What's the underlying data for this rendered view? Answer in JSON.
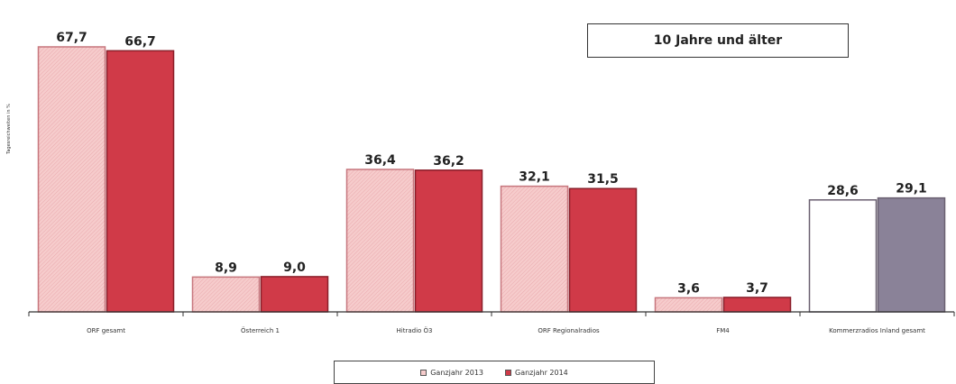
{
  "chart_data": {
    "type": "bar",
    "title": "10 Jahre und älter",
    "ylabel": "Tagesreichweiten in %",
    "ylim": [
      0,
      70
    ],
    "categories": [
      "ORF gesamt",
      "Österreich 1",
      "Hitradio Ö3",
      "ORF Regionalradios",
      "FM4",
      "Kommerzradios Inland gesamt"
    ],
    "series": [
      {
        "name": "Ganzjahr 2013",
        "values": [
          67.7,
          8.9,
          36.4,
          32.1,
          3.6,
          28.6
        ],
        "labels": [
          "67,7",
          "8,9",
          "36,4",
          "32,1",
          "3,6",
          "28,6"
        ]
      },
      {
        "name": "Ganzjahr 2014",
        "values": [
          66.7,
          9.0,
          36.2,
          31.5,
          3.7,
          29.1
        ],
        "labels": [
          "66,7",
          "9,0",
          "36,2",
          "31,5",
          "3,7",
          "29,1"
        ]
      }
    ],
    "colors": {
      "s2013": "#f6cccc",
      "s2014": "#d03a48",
      "commercial2013": "#ffffff",
      "commercial2014": "#8a8298"
    },
    "legend_position": "bottom-center"
  }
}
